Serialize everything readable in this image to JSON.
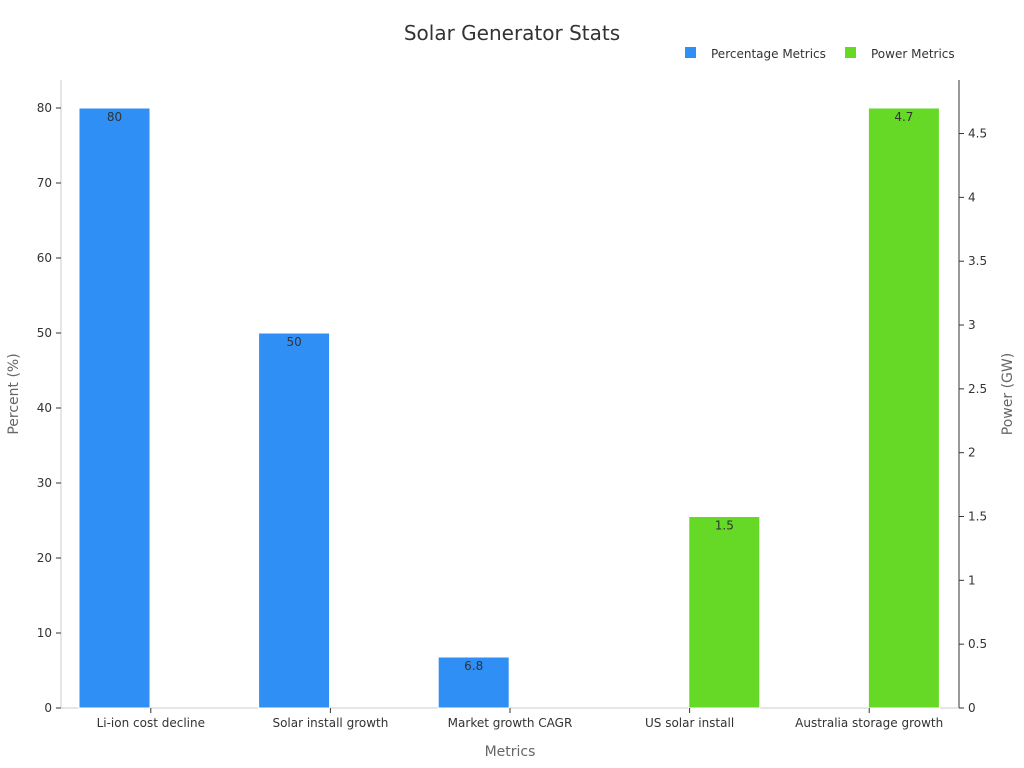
{
  "chart_data": {
    "type": "bar",
    "title": "Solar Generator Stats",
    "xlabel": "Metrics",
    "ylabel_left": "Percent (%)",
    "ylabel_right": "Power (GW)",
    "categories": [
      "Li-ion cost decline",
      "Solar install growth",
      "Market growth CAGR",
      "US solar install",
      "Australia storage growth"
    ],
    "series": [
      {
        "name": "Percentage Metrics",
        "axis": "left",
        "color": "#2f8ff5",
        "values": [
          80,
          50,
          6.8,
          null,
          null
        ],
        "labels": [
          "80",
          "50",
          "6.8",
          "",
          ""
        ]
      },
      {
        "name": "Power Metrics",
        "axis": "right",
        "color": "#66d926",
        "values": [
          null,
          null,
          null,
          1.5,
          4.7
        ],
        "labels": [
          "",
          "",
          "",
          "1.5",
          "4.7"
        ]
      }
    ],
    "ylim_left": [
      0,
      84
    ],
    "ylim_right": [
      0,
      4.935
    ],
    "yticks_left": [
      "0",
      "10",
      "20",
      "30",
      "40",
      "50",
      "60",
      "70",
      "80"
    ],
    "yticks_right": [
      "0",
      "0.5",
      "1",
      "1.5",
      "2",
      "2.5",
      "3",
      "3.5",
      "4",
      "4.5"
    ],
    "legend_position": "top-right",
    "grid": false
  }
}
